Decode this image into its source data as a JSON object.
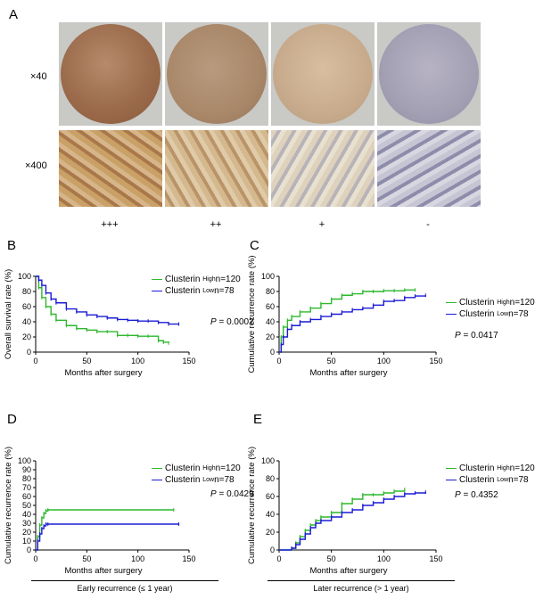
{
  "panel_a": {
    "label": "A",
    "magnifications": [
      "×40",
      "×400"
    ],
    "grades": [
      "+++",
      "++",
      "+",
      "-"
    ]
  },
  "chart_data": [
    {
      "panel": "B",
      "type": "line",
      "xlabel": "Months after surgery",
      "ylabel": "Overall survival rate (%)",
      "xlim": [
        0,
        150
      ],
      "ylim": [
        0,
        100
      ],
      "xticks": [
        "0",
        "50",
        "100",
        "150"
      ],
      "yticks": [
        "0",
        "20",
        "40",
        "60",
        "80",
        "100"
      ],
      "series": [
        {
          "name": "Clusterin High n=120",
          "color": "#2db82d",
          "x": [
            0,
            3,
            6,
            10,
            15,
            20,
            30,
            40,
            50,
            60,
            70,
            80,
            90,
            100,
            110,
            120,
            125,
            130
          ],
          "y": [
            100,
            85,
            72,
            60,
            50,
            42,
            35,
            31,
            29,
            27,
            27,
            22,
            22,
            21,
            21,
            15,
            13,
            12
          ]
        },
        {
          "name": "Clusterin Low n=78",
          "color": "#1b1bd6",
          "x": [
            0,
            3,
            6,
            10,
            15,
            20,
            30,
            40,
            50,
            60,
            70,
            80,
            90,
            100,
            110,
            120,
            130,
            140
          ],
          "y": [
            100,
            95,
            88,
            78,
            70,
            65,
            57,
            53,
            49,
            47,
            45,
            43,
            42,
            41,
            41,
            39,
            37,
            37
          ]
        }
      ],
      "legend": {
        "items": [
          {
            "prefix": "Clusterin ",
            "sup": "High",
            "suffix": "n=120"
          },
          {
            "prefix": "Clusterin ",
            "sup": "Low",
            "suffix": "n=78"
          }
        ]
      },
      "p_label": "P",
      "p_value": " = 0.0002"
    },
    {
      "panel": "C",
      "type": "line",
      "xlabel": "Months after surgery",
      "ylabel": "Cumulative recurrence rate (%)",
      "xlim": [
        0,
        150
      ],
      "ylim": [
        0,
        100
      ],
      "xticks": [
        "0",
        "50",
        "100",
        "150"
      ],
      "yticks": [
        "0",
        "20",
        "40",
        "60",
        "80",
        "100"
      ],
      "series": [
        {
          "name": "Clusterin High n=120",
          "color": "#2db82d",
          "x": [
            0,
            2,
            4,
            8,
            12,
            20,
            30,
            40,
            50,
            60,
            70,
            80,
            90,
            100,
            110,
            120,
            130
          ],
          "y": [
            0,
            20,
            33,
            42,
            47,
            53,
            58,
            64,
            70,
            75,
            77,
            80,
            80,
            81,
            81,
            82,
            82
          ]
        },
        {
          "name": "Clusterin Low n=78",
          "color": "#1b1bd6",
          "x": [
            0,
            2,
            4,
            8,
            12,
            20,
            30,
            40,
            50,
            60,
            70,
            80,
            90,
            100,
            110,
            120,
            130,
            140
          ],
          "y": [
            0,
            10,
            20,
            30,
            35,
            40,
            43,
            47,
            50,
            53,
            56,
            58,
            62,
            67,
            68,
            72,
            74,
            75
          ]
        }
      ],
      "legend": {
        "items": [
          {
            "prefix": "Clusterin ",
            "sup": "High",
            "suffix": "n=120"
          },
          {
            "prefix": "Clusterin ",
            "sup": "Low",
            "suffix": "n=78"
          }
        ]
      },
      "p_label": "P",
      "p_value": " = 0.0417"
    },
    {
      "panel": "D",
      "type": "line",
      "xlabel": "Months after surgery",
      "ylabel": "Cumulative recurrence rate (%)",
      "xlim": [
        0,
        150
      ],
      "ylim": [
        0,
        100
      ],
      "xticks": [
        "0",
        "50",
        "100",
        "150"
      ],
      "yticks": [
        "0",
        "10",
        "20",
        "30",
        "40",
        "50",
        "60",
        "70",
        "80",
        "90",
        "100"
      ],
      "series": [
        {
          "name": "Clusterin High n=120",
          "color": "#2db82d",
          "x": [
            0,
            2,
            4,
            6,
            8,
            10,
            12,
            135
          ],
          "y": [
            0,
            15,
            28,
            36,
            41,
            44,
            45,
            45
          ]
        },
        {
          "name": "Clusterin Low n=78",
          "color": "#1b1bd6",
          "x": [
            0,
            2,
            4,
            6,
            8,
            10,
            12,
            140
          ],
          "y": [
            0,
            10,
            18,
            24,
            27,
            29,
            29,
            29
          ]
        }
      ],
      "legend": {
        "items": [
          {
            "prefix": "Clusterin ",
            "sup": "High",
            "suffix": "n=120"
          },
          {
            "prefix": "Clusterin ",
            "sup": "Low",
            "suffix": "n=78"
          }
        ]
      },
      "p_label": "P",
      "p_value": " = 0.0429",
      "group_label": "Early recurrence (≤  1 year)"
    },
    {
      "panel": "E",
      "type": "line",
      "xlabel": "Months after surgery",
      "ylabel": "Cumulative recurrence rate (%)",
      "xlim": [
        0,
        150
      ],
      "ylim": [
        0,
        100
      ],
      "xticks": [
        "0",
        "50",
        "100",
        "150"
      ],
      "yticks": [
        "0",
        "20",
        "40",
        "60",
        "80",
        "100"
      ],
      "series": [
        {
          "name": "Clusterin High n=120",
          "color": "#2db82d",
          "x": [
            0,
            12,
            16,
            20,
            25,
            30,
            35,
            40,
            50,
            60,
            70,
            80,
            90,
            100,
            110,
            120
          ],
          "y": [
            0,
            2,
            8,
            15,
            22,
            28,
            33,
            37,
            42,
            52,
            57,
            62,
            62,
            64,
            66,
            68
          ]
        },
        {
          "name": "Clusterin Low n=78",
          "color": "#1b1bd6",
          "x": [
            0,
            12,
            16,
            20,
            25,
            30,
            35,
            40,
            50,
            60,
            70,
            80,
            90,
            100,
            110,
            120,
            130,
            140
          ],
          "y": [
            0,
            2,
            6,
            12,
            18,
            25,
            30,
            33,
            37,
            42,
            45,
            50,
            53,
            57,
            60,
            63,
            64,
            65
          ]
        }
      ],
      "legend": {
        "items": [
          {
            "prefix": "Clusterin ",
            "sup": "High",
            "suffix": "n=120"
          },
          {
            "prefix": "Clusterin ",
            "sup": "Low",
            "suffix": "n=78"
          }
        ]
      },
      "p_label": "P",
      "p_value": " = 0.4352",
      "group_label": "Later recurrence (> 1 year)"
    }
  ],
  "panel_letters": [
    "B",
    "C",
    "D",
    "E"
  ],
  "colors": {
    "high_series": "#2db82d",
    "low_series": "#1b1bd6",
    "stain_strong": "#9b6b4c",
    "stain_moderate": "#a98769",
    "stain_weak": "#c7ab8c",
    "stain_negative": "#a3a0b4"
  }
}
